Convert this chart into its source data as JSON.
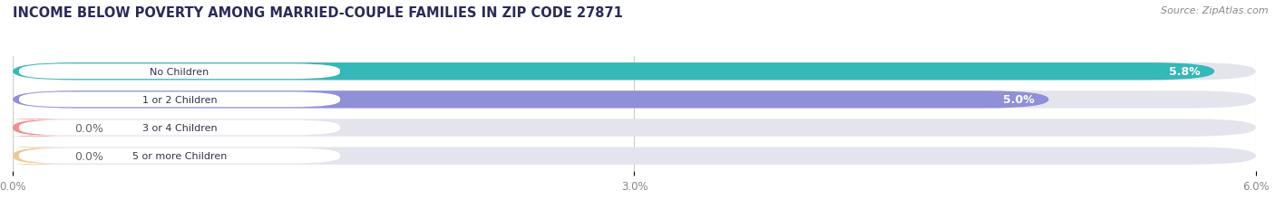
{
  "title": "INCOME BELOW POVERTY AMONG MARRIED-COUPLE FAMILIES IN ZIP CODE 27871",
  "source": "Source: ZipAtlas.com",
  "categories": [
    "No Children",
    "1 or 2 Children",
    "3 or 4 Children",
    "5 or more Children"
  ],
  "values": [
    5.8,
    5.0,
    0.0,
    0.0
  ],
  "bar_colors": [
    "#34b8b8",
    "#9090d8",
    "#f09090",
    "#f0c898"
  ],
  "xlim_max": 6.0,
  "xticks": [
    0.0,
    3.0,
    6.0
  ],
  "xtick_labels": [
    "0.0%",
    "3.0%",
    "6.0%"
  ],
  "title_fontsize": 10.5,
  "source_fontsize": 8,
  "bar_label_fontsize": 9,
  "bg_color": "#ffffff",
  "bar_bg_color": "#e4e4ec",
  "value_label_inside_color": "#ffffff",
  "value_label_outside_color": "#666666",
  "tick_color": "#888888",
  "grid_color": "#cccccc",
  "title_color": "#2a2a5a",
  "source_color": "#888888"
}
